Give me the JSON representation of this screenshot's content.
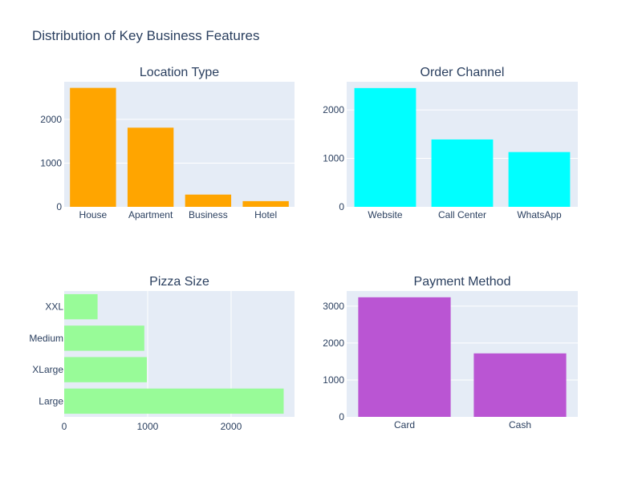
{
  "figure": {
    "title": "Distribution of Key Business Features"
  },
  "style": {
    "plot_bg": "#e5ecf6",
    "grid_color": "#ffffff",
    "text_color": "#2a3f5f"
  },
  "chart_data": [
    {
      "type": "bar",
      "orientation": "vertical",
      "title": "Location Type",
      "categories": [
        "House",
        "Apartment",
        "Business",
        "Hotel"
      ],
      "values": [
        2720,
        1810,
        280,
        130
      ],
      "color": "#ffa500",
      "ylim": [
        0,
        2860
      ],
      "yticks": [
        0,
        1000,
        2000
      ],
      "grid": true
    },
    {
      "type": "bar",
      "orientation": "vertical",
      "title": "Order Channel",
      "categories": [
        "Website",
        "Call Center",
        "WhatsApp"
      ],
      "values": [
        2450,
        1390,
        1130
      ],
      "color": "#00ffff",
      "ylim": [
        0,
        2580
      ],
      "yticks": [
        0,
        1000,
        2000
      ],
      "grid": true
    },
    {
      "type": "bar",
      "orientation": "horizontal",
      "title": "Pizza Size",
      "categories": [
        "XXL",
        "Medium",
        "XLarge",
        "Large"
      ],
      "values": [
        400,
        960,
        990,
        2630
      ],
      "color": "#98fb98",
      "xlim": [
        0,
        2760
      ],
      "xticks": [
        0,
        1000,
        2000
      ],
      "grid": true
    },
    {
      "type": "bar",
      "orientation": "vertical",
      "title": "Payment Method",
      "categories": [
        "Card",
        "Cash"
      ],
      "values": [
        3240,
        1720
      ],
      "color": "#ba55d3",
      "ylim": [
        0,
        3410
      ],
      "yticks": [
        0,
        1000,
        2000,
        3000
      ],
      "grid": true
    }
  ]
}
